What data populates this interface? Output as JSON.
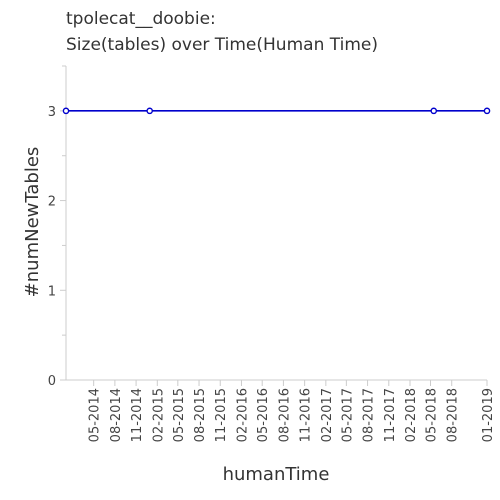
{
  "chart_data": {
    "type": "line",
    "title": "tpolecat__doobie:",
    "subtitle": "Size(tables) over Time(Human Time)",
    "xlabel": "humanTime",
    "ylabel": "#numNewTables",
    "x_range": [
      "2014-01-01",
      "2019-01-01"
    ],
    "ylim": [
      0,
      3.5
    ],
    "y_ticks": [
      0,
      1,
      2,
      3
    ],
    "y_tick_labels": [
      "0",
      "1",
      "2",
      "3"
    ],
    "x_ticks": [
      "2014-05-01",
      "2014-08-01",
      "2014-11-01",
      "2015-02-01",
      "2015-05-01",
      "2015-08-01",
      "2015-11-01",
      "2016-02-01",
      "2016-05-01",
      "2016-08-01",
      "2016-11-01",
      "2017-02-01",
      "2017-05-01",
      "2017-08-01",
      "2017-11-01",
      "2018-02-01",
      "2018-05-01",
      "2018-08-01",
      "2019-01-01"
    ],
    "x_tick_labels": [
      "05-2014",
      "08-2014",
      "11-2014",
      "02-2015",
      "05-2015",
      "08-2015",
      "11-2015",
      "02-2016",
      "05-2016",
      "08-2016",
      "11-2016",
      "02-2017",
      "05-2017",
      "08-2017",
      "11-2017",
      "02-2018",
      "05-2018",
      "08-2018",
      "01-2019"
    ],
    "grid": false,
    "series": [
      {
        "color": "#0000cc",
        "points": [
          {
            "x": "2014-01-01",
            "y": 3
          },
          {
            "x": "2014-12-30",
            "y": 3
          },
          {
            "x": "2018-05-15",
            "y": 3
          },
          {
            "x": "2019-01-01",
            "y": 3
          }
        ]
      }
    ]
  }
}
